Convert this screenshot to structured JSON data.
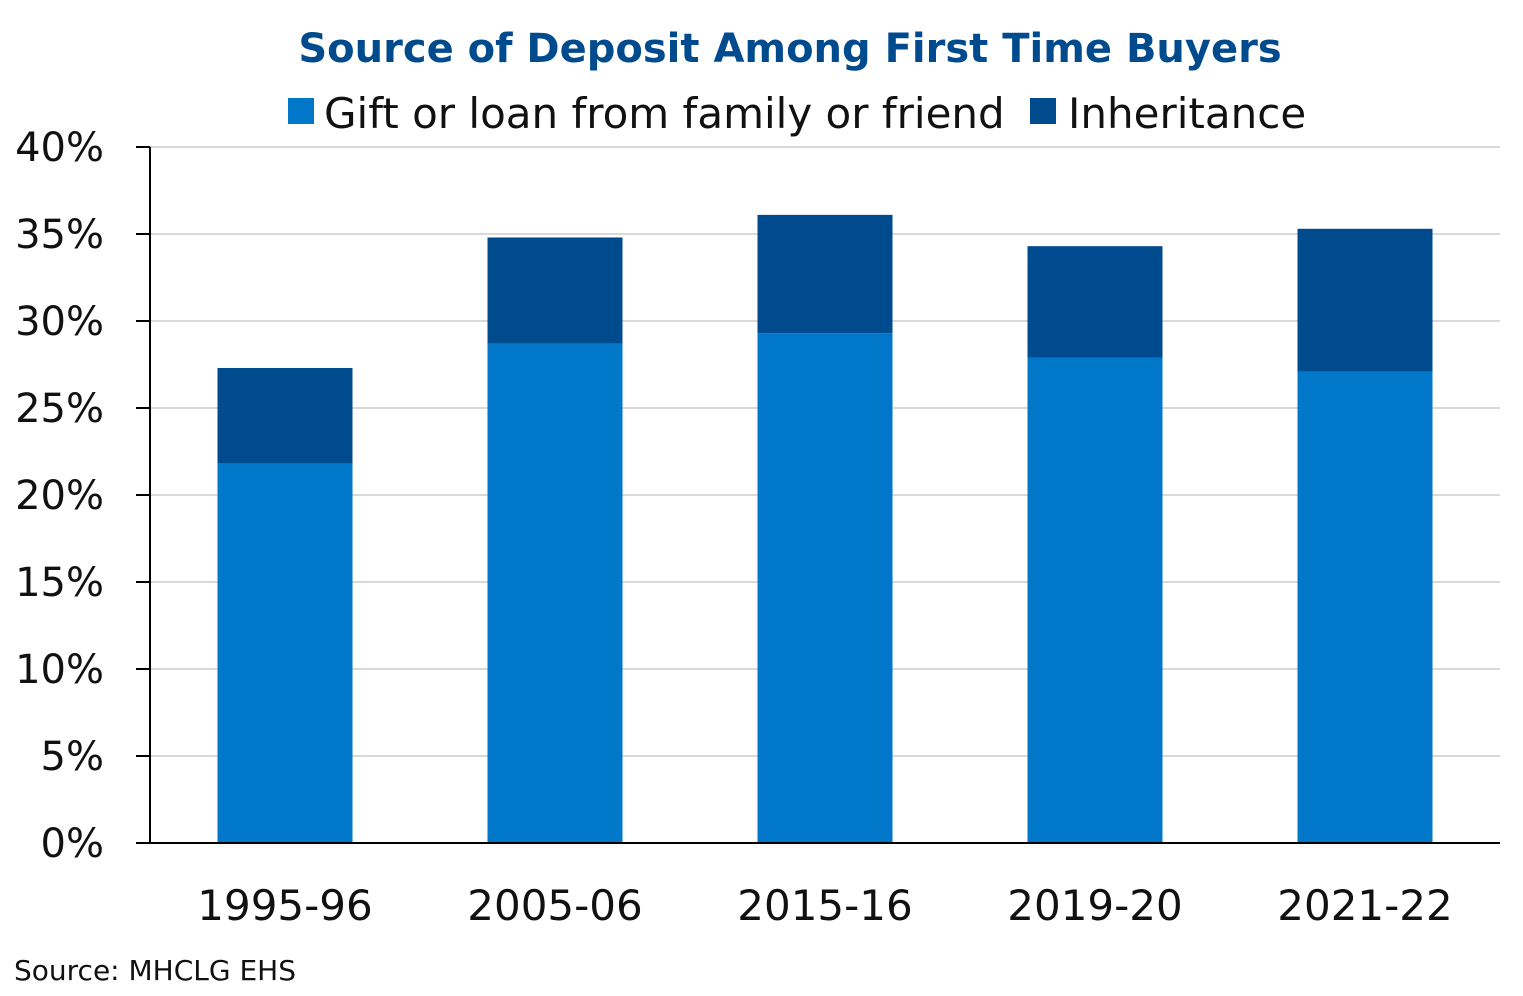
{
  "chart_data": {
    "type": "bar",
    "stacked": true,
    "title": "Source of Deposit Among First Time Buyers",
    "categories": [
      "1995-96",
      "2005-06",
      "2015-16",
      "2019-20",
      "2021-22"
    ],
    "series": [
      {
        "name": "Gift or loan from family or friend",
        "color": "#0077C8",
        "values": [
          21.8,
          28.7,
          29.3,
          27.9,
          27.1
        ]
      },
      {
        "name": "Inheritance",
        "color": "#004B8D",
        "values": [
          5.5,
          6.1,
          6.8,
          6.4,
          8.2
        ]
      }
    ],
    "ylim": [
      0,
      40
    ],
    "yticks": [
      {
        "value": 0,
        "label": "0%"
      },
      {
        "value": 5,
        "label": "5%"
      },
      {
        "value": 10,
        "label": "10%"
      },
      {
        "value": 15,
        "label": "15%"
      },
      {
        "value": 20,
        "label": "20%"
      },
      {
        "value": 25,
        "label": "25%"
      },
      {
        "value": 30,
        "label": "30%"
      },
      {
        "value": 35,
        "label": "35%"
      },
      {
        "value": 40,
        "label": "40%"
      }
    ],
    "xlabel": "",
    "ylabel": "",
    "grid": true,
    "legend_position": "top",
    "source": "Source: MHCLG EHS",
    "title_color": "#004B8D",
    "grid_color": "#D9D9D9",
    "axis_color": "#000000"
  }
}
